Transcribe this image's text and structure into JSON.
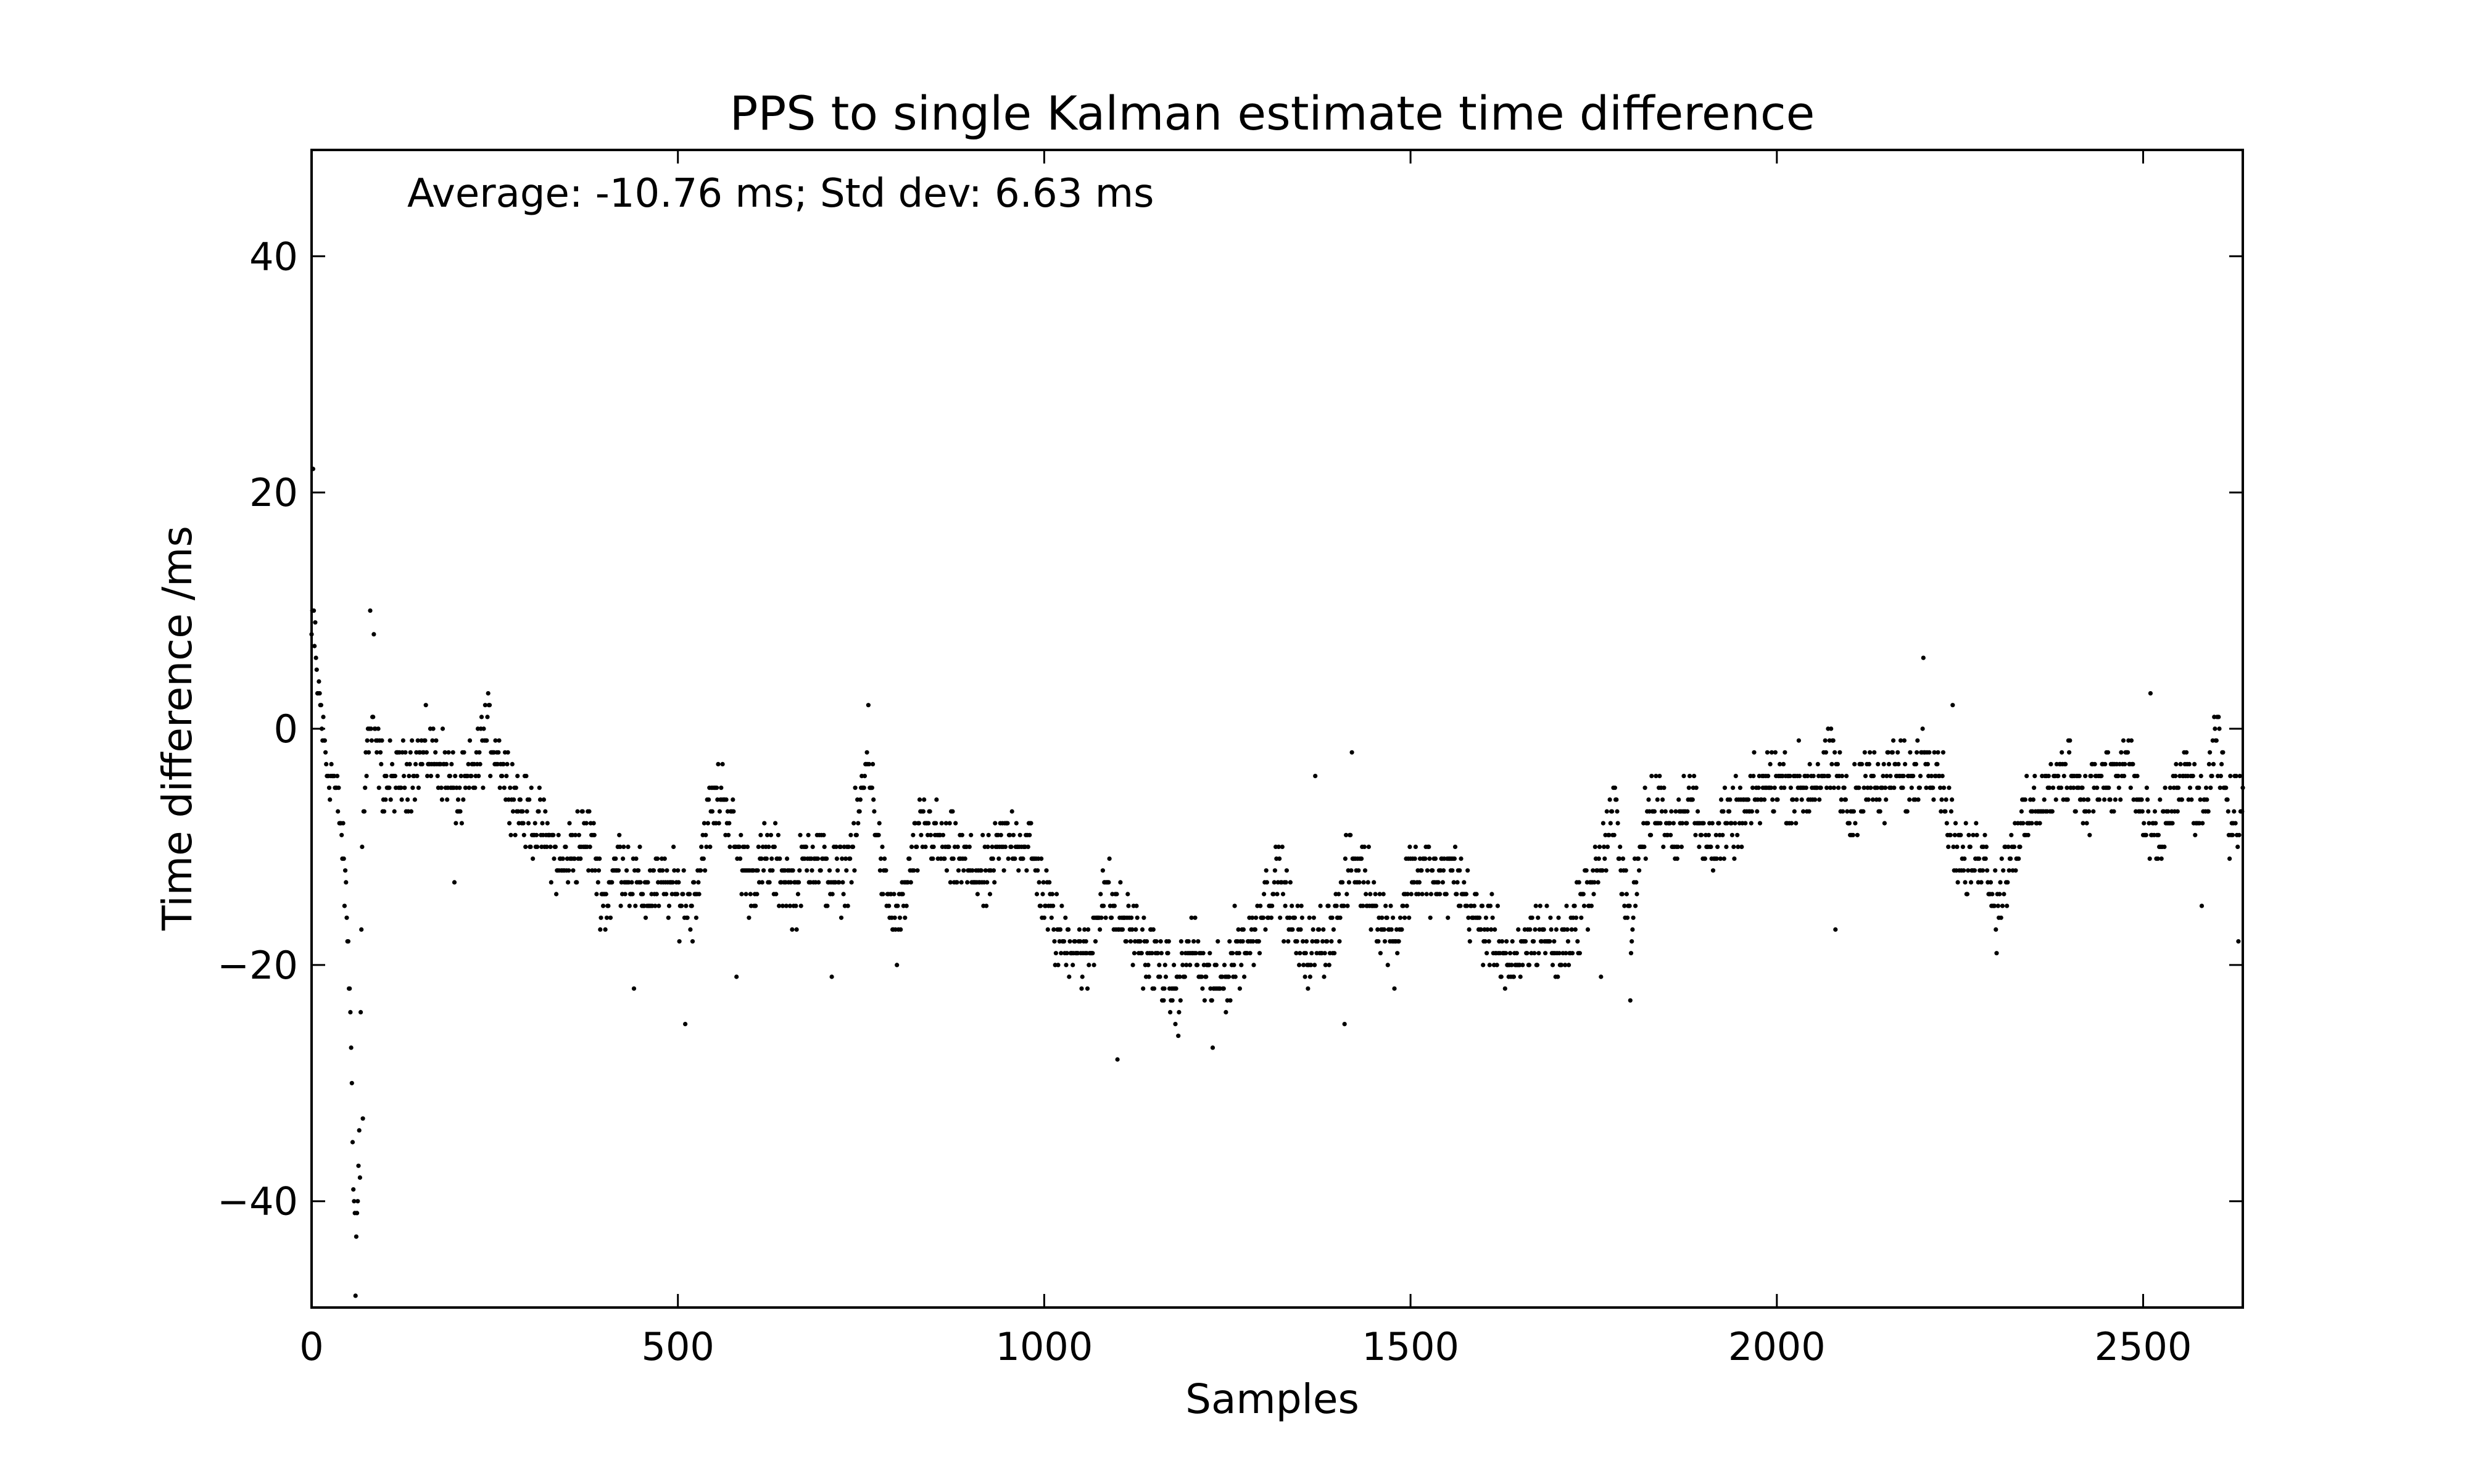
{
  "chart_data": {
    "type": "scatter",
    "title": "PPS to single Kalman estimate time difference",
    "xlabel": "Samples",
    "ylabel": "Time difference /ms",
    "annotation": "Average: -10.76 ms;  Std dev: 6.63 ms",
    "xlim": [
      0,
      2636
    ],
    "ylim": [
      -49,
      49
    ],
    "x_ticks": [
      0,
      500,
      1000,
      1500,
      2000,
      2500
    ],
    "x_tick_labels": [
      "0",
      "500",
      "1000",
      "1500",
      "2000",
      "2500"
    ],
    "y_ticks": [
      -40,
      -20,
      0,
      20,
      40
    ],
    "y_tick_labels": [
      "−40",
      "−20",
      "0",
      "20",
      "40"
    ],
    "grid": false,
    "marker_color": "#000000",
    "trend": [
      [
        0,
        8
      ],
      [
        10,
        3
      ],
      [
        20,
        -3
      ],
      [
        30,
        -4
      ],
      [
        40,
        -8
      ],
      [
        50,
        -18
      ],
      [
        55,
        -30
      ],
      [
        60,
        -45
      ],
      [
        65,
        -35
      ],
      [
        70,
        -6
      ],
      [
        80,
        0
      ],
      [
        90,
        -2
      ],
      [
        100,
        -5
      ],
      [
        120,
        -4
      ],
      [
        140,
        -3
      ],
      [
        160,
        -2
      ],
      [
        180,
        -3
      ],
      [
        200,
        -6
      ],
      [
        220,
        -4
      ],
      [
        240,
        0
      ],
      [
        260,
        -3
      ],
      [
        280,
        -6
      ],
      [
        300,
        -8
      ],
      [
        320,
        -9
      ],
      [
        340,
        -12
      ],
      [
        360,
        -10
      ],
      [
        380,
        -9
      ],
      [
        400,
        -15
      ],
      [
        420,
        -11
      ],
      [
        440,
        -13
      ],
      [
        460,
        -14
      ],
      [
        480,
        -13
      ],
      [
        500,
        -14
      ],
      [
        520,
        -15
      ],
      [
        540,
        -8
      ],
      [
        560,
        -5
      ],
      [
        580,
        -10
      ],
      [
        600,
        -13
      ],
      [
        620,
        -11
      ],
      [
        640,
        -12
      ],
      [
        660,
        -14
      ],
      [
        680,
        -10
      ],
      [
        700,
        -12
      ],
      [
        720,
        -13
      ],
      [
        740,
        -10
      ],
      [
        760,
        -2
      ],
      [
        780,
        -13
      ],
      [
        800,
        -17
      ],
      [
        820,
        -11
      ],
      [
        840,
        -8
      ],
      [
        860,
        -10
      ],
      [
        880,
        -11
      ],
      [
        900,
        -12
      ],
      [
        920,
        -13
      ],
      [
        940,
        -10
      ],
      [
        960,
        -9
      ],
      [
        980,
        -10
      ],
      [
        1000,
        -14
      ],
      [
        1020,
        -18
      ],
      [
        1040,
        -18
      ],
      [
        1060,
        -20
      ],
      [
        1080,
        -13
      ],
      [
        1100,
        -16
      ],
      [
        1120,
        -17
      ],
      [
        1140,
        -19
      ],
      [
        1160,
        -20
      ],
      [
        1180,
        -23
      ],
      [
        1200,
        -18
      ],
      [
        1220,
        -21
      ],
      [
        1240,
        -22
      ],
      [
        1260,
        -19
      ],
      [
        1280,
        -18
      ],
      [
        1300,
        -15
      ],
      [
        1320,
        -12
      ],
      [
        1340,
        -17
      ],
      [
        1360,
        -19
      ],
      [
        1380,
        -18
      ],
      [
        1400,
        -16
      ],
      [
        1420,
        -11
      ],
      [
        1440,
        -13
      ],
      [
        1460,
        -16
      ],
      [
        1480,
        -18
      ],
      [
        1500,
        -12
      ],
      [
        1520,
        -12
      ],
      [
        1540,
        -13
      ],
      [
        1560,
        -12
      ],
      [
        1580,
        -15
      ],
      [
        1600,
        -17
      ],
      [
        1620,
        -18
      ],
      [
        1640,
        -21
      ],
      [
        1660,
        -18
      ],
      [
        1680,
        -17
      ],
      [
        1700,
        -19
      ],
      [
        1720,
        -17
      ],
      [
        1740,
        -14
      ],
      [
        1760,
        -11
      ],
      [
        1780,
        -7
      ],
      [
        1800,
        -17
      ],
      [
        1820,
        -8
      ],
      [
        1840,
        -6
      ],
      [
        1860,
        -9
      ],
      [
        1880,
        -5
      ],
      [
        1900,
        -10
      ],
      [
        1920,
        -9
      ],
      [
        1940,
        -8
      ],
      [
        1960,
        -7
      ],
      [
        1980,
        -5
      ],
      [
        2000,
        -4
      ],
      [
        2020,
        -5
      ],
      [
        2040,
        -5
      ],
      [
        2060,
        -4
      ],
      [
        2080,
        -3
      ],
      [
        2100,
        -8
      ],
      [
        2120,
        -3
      ],
      [
        2140,
        -6
      ],
      [
        2160,
        -3
      ],
      [
        2180,
        -5
      ],
      [
        2200,
        -2
      ],
      [
        2220,
        -3
      ],
      [
        2240,
        -9
      ],
      [
        2260,
        -12
      ],
      [
        2280,
        -10
      ],
      [
        2300,
        -15
      ],
      [
        2320,
        -10
      ],
      [
        2340,
        -8
      ],
      [
        2360,
        -6
      ],
      [
        2380,
        -5
      ],
      [
        2400,
        -3
      ],
      [
        2420,
        -6
      ],
      [
        2440,
        -4
      ],
      [
        2460,
        -5
      ],
      [
        2480,
        -2
      ],
      [
        2500,
        -8
      ],
      [
        2520,
        -10
      ],
      [
        2540,
        -6
      ],
      [
        2560,
        -4
      ],
      [
        2580,
        -8
      ],
      [
        2600,
        -1
      ],
      [
        2620,
        -8
      ],
      [
        2636,
        -6
      ]
    ],
    "outliers": [
      [
        2,
        22
      ],
      [
        3,
        10
      ],
      [
        5,
        9
      ],
      [
        8,
        3
      ],
      [
        60,
        -48
      ],
      [
        62,
        -41
      ],
      [
        66,
        -38
      ],
      [
        70,
        -33
      ],
      [
        80,
        10
      ],
      [
        85,
        8
      ],
      [
        195,
        -13
      ],
      [
        440,
        -22
      ],
      [
        510,
        -25
      ],
      [
        580,
        -21
      ],
      [
        710,
        -21
      ],
      [
        760,
        2
      ],
      [
        1100,
        -28
      ],
      [
        1230,
        -27
      ],
      [
        1370,
        -4
      ],
      [
        1410,
        -25
      ],
      [
        1420,
        -2
      ],
      [
        1760,
        -21
      ],
      [
        1800,
        -23
      ],
      [
        2080,
        -17
      ],
      [
        2200,
        6
      ],
      [
        2240,
        2
      ],
      [
        2300,
        -19
      ],
      [
        2510,
        3
      ],
      [
        2580,
        -15
      ],
      [
        2630,
        -18
      ]
    ]
  }
}
